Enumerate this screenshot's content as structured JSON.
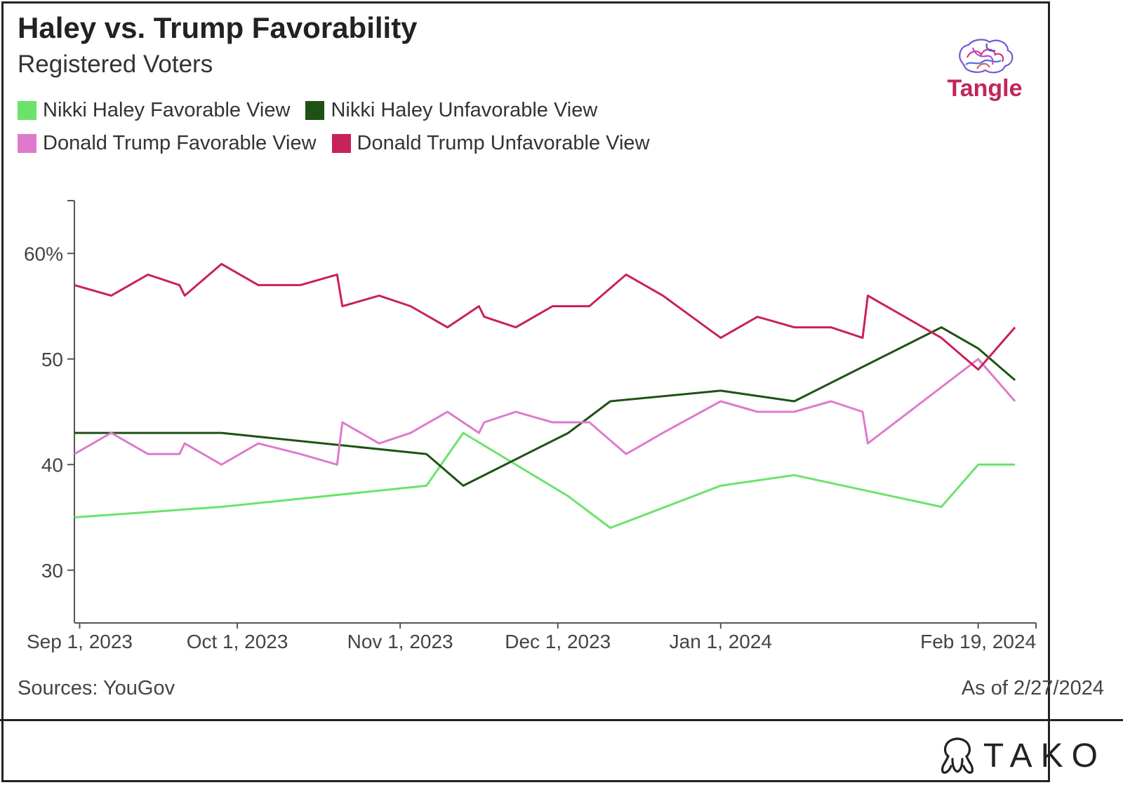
{
  "header": {
    "title": "Haley vs. Trump Favorability",
    "subtitle": "Registered Voters"
  },
  "brand": {
    "tangle": "Tangle",
    "tako": "TAKO"
  },
  "footer": {
    "source": "Sources: YouGov",
    "as_of": "As of 2/27/2024"
  },
  "chart_data": {
    "type": "line",
    "title": "Haley vs. Trump Favorability",
    "subtitle": "Registered Voters",
    "xlabel": "",
    "ylabel": "",
    "x_ticks": [
      "2023-09-01",
      "2023-10-01",
      "2023-11-01",
      "2023-12-01",
      "2024-01-01",
      "2024-02-19"
    ],
    "x_tick_labels": [
      "Sep 1, 2023",
      "Oct 1, 2023",
      "Nov 1, 2023",
      "Dec 1, 2023",
      "Jan 1, 2024",
      "Feb 19, 2024"
    ],
    "y_ticks": [
      30,
      40,
      50,
      60
    ],
    "y_tick_labels": [
      "30",
      "40",
      "50",
      "60%"
    ],
    "ylim": [
      25,
      65
    ],
    "xlim": [
      "2023-08-31",
      "2024-03-01"
    ],
    "legend_position": "top-left",
    "grid": false,
    "series": [
      {
        "name": "Nikki Haley Favorable View",
        "color": "#6be36b",
        "points": [
          [
            "2023-08-31",
            35
          ],
          [
            "2023-09-28",
            36
          ],
          [
            "2023-11-06",
            38
          ],
          [
            "2023-11-13",
            43
          ],
          [
            "2023-12-03",
            37
          ],
          [
            "2023-12-11",
            34
          ],
          [
            "2024-01-01",
            38
          ],
          [
            "2024-01-15",
            39
          ],
          [
            "2024-02-12",
            36
          ],
          [
            "2024-02-19",
            40
          ],
          [
            "2024-02-26",
            40
          ]
        ]
      },
      {
        "name": "Nikki Haley Unfavorable View",
        "color": "#1e5214",
        "points": [
          [
            "2023-08-31",
            43
          ],
          [
            "2023-09-28",
            43
          ],
          [
            "2023-11-06",
            41
          ],
          [
            "2023-11-13",
            38
          ],
          [
            "2023-12-03",
            43
          ],
          [
            "2023-12-11",
            46
          ],
          [
            "2024-01-01",
            47
          ],
          [
            "2024-01-15",
            46
          ],
          [
            "2024-02-12",
            53
          ],
          [
            "2024-02-19",
            51
          ],
          [
            "2024-02-26",
            48
          ]
        ]
      },
      {
        "name": "Donald Trump Favorable View",
        "color": "#de7bcc",
        "points": [
          [
            "2023-08-31",
            41
          ],
          [
            "2023-09-07",
            43
          ],
          [
            "2023-09-14",
            41
          ],
          [
            "2023-09-20",
            41
          ],
          [
            "2023-09-21",
            42
          ],
          [
            "2023-09-28",
            40
          ],
          [
            "2023-10-05",
            42
          ],
          [
            "2023-10-13",
            41
          ],
          [
            "2023-10-20",
            40
          ],
          [
            "2023-10-21",
            44
          ],
          [
            "2023-10-28",
            42
          ],
          [
            "2023-11-03",
            43
          ],
          [
            "2023-11-10",
            45
          ],
          [
            "2023-11-16",
            43
          ],
          [
            "2023-11-17",
            44
          ],
          [
            "2023-11-23",
            45
          ],
          [
            "2023-11-30",
            44
          ],
          [
            "2023-12-07",
            44
          ],
          [
            "2023-12-14",
            41
          ],
          [
            "2023-12-21",
            43
          ],
          [
            "2024-01-01",
            46
          ],
          [
            "2024-01-08",
            45
          ],
          [
            "2024-01-15",
            45
          ],
          [
            "2024-01-22",
            46
          ],
          [
            "2024-01-28",
            45
          ],
          [
            "2024-01-29",
            42
          ],
          [
            "2024-02-19",
            50
          ],
          [
            "2024-02-26",
            46
          ]
        ]
      },
      {
        "name": "Donald Trump Unfavorable View",
        "color": "#c8225a",
        "points": [
          [
            "2023-08-31",
            57
          ],
          [
            "2023-09-07",
            56
          ],
          [
            "2023-09-14",
            58
          ],
          [
            "2023-09-20",
            57
          ],
          [
            "2023-09-21",
            56
          ],
          [
            "2023-09-28",
            59
          ],
          [
            "2023-10-05",
            57
          ],
          [
            "2023-10-13",
            57
          ],
          [
            "2023-10-20",
            58
          ],
          [
            "2023-10-21",
            55
          ],
          [
            "2023-10-28",
            56
          ],
          [
            "2023-11-03",
            55
          ],
          [
            "2023-11-10",
            53
          ],
          [
            "2023-11-16",
            55
          ],
          [
            "2023-11-17",
            54
          ],
          [
            "2023-11-23",
            53
          ],
          [
            "2023-11-30",
            55
          ],
          [
            "2023-12-07",
            55
          ],
          [
            "2023-12-14",
            58
          ],
          [
            "2023-12-21",
            56
          ],
          [
            "2024-01-01",
            52
          ],
          [
            "2024-01-08",
            54
          ],
          [
            "2024-01-15",
            53
          ],
          [
            "2024-01-22",
            53
          ],
          [
            "2024-01-28",
            52
          ],
          [
            "2024-01-29",
            56
          ],
          [
            "2024-02-12",
            52
          ],
          [
            "2024-02-19",
            49
          ],
          [
            "2024-02-26",
            53
          ]
        ]
      }
    ]
  }
}
